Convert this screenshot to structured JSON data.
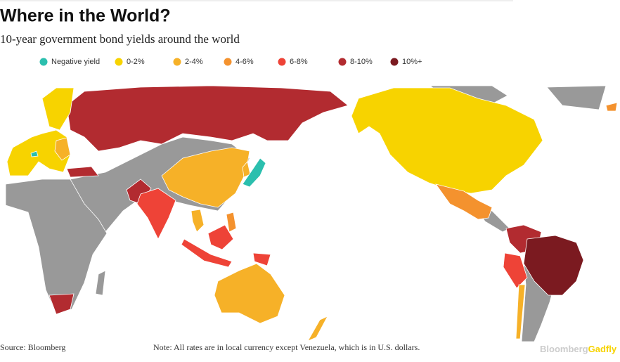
{
  "header": {
    "title": "Where in the World?",
    "subtitle": "10-year government bond yields around the world"
  },
  "legend": [
    {
      "label": "Negative yield",
      "color": "#2bbfae"
    },
    {
      "label": "0-2%",
      "color": "#f7d300"
    },
    {
      "label": "2-4%",
      "color": "#f6b128"
    },
    {
      "label": "4-6%",
      "color": "#f4922e"
    },
    {
      "label": "6-8%",
      "color": "#ee4337"
    },
    {
      "label": "8-10%",
      "color": "#b22b30"
    },
    {
      "label": "10%+",
      "color": "#7b1a20"
    }
  ],
  "footer": {
    "source": "Source: Bloomberg",
    "note": "Note: All rates are in local currency except Venezuela, which is in U.S. dollars.",
    "logo": {
      "brand": "Bloomberg",
      "product": "Gadfly"
    }
  }
}
